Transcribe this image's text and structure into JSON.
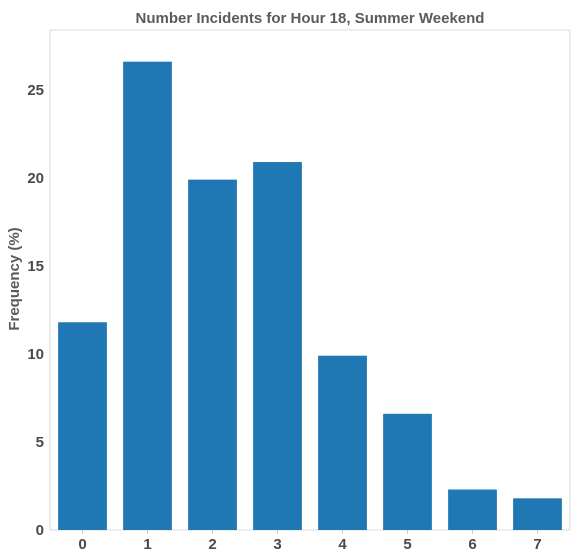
{
  "chart_data": {
    "type": "bar",
    "title": "Number Incidents for Hour 18, Summer Weekend",
    "xlabel": "",
    "ylabel": "Frequency (%)",
    "categories": [
      "0",
      "1",
      "2",
      "3",
      "4",
      "5",
      "6",
      "7"
    ],
    "values": [
      11.8,
      26.6,
      19.9,
      20.9,
      9.9,
      6.6,
      2.3,
      1.8
    ],
    "ylim": [
      0,
      28.4
    ],
    "yticks": [
      0,
      5,
      10,
      15,
      20,
      25
    ],
    "bar_color": "#1f77b4",
    "grid": false,
    "legend": "none"
  }
}
